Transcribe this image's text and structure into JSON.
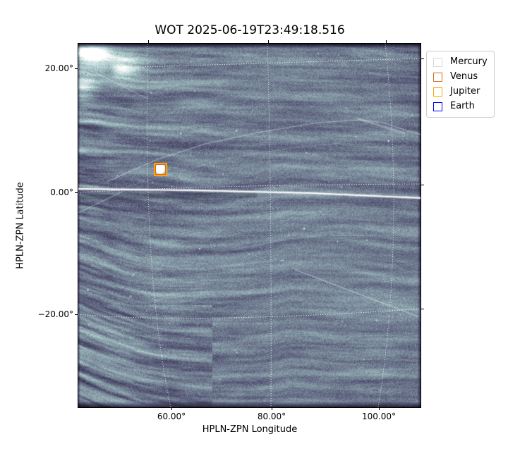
{
  "figure": {
    "title": "WOT 2025-06-19T23:49:18.516"
  },
  "axes": {
    "xlabel": "HPLN-ZPN Longitude",
    "ylabel": "HPLN-ZPN Latitude",
    "x_tick_labels": [
      "60.00°",
      "80.00°",
      "100.00°"
    ],
    "y_tick_labels": [
      "20.00°",
      "0.00°",
      "−20.00°"
    ]
  },
  "legend": {
    "items": [
      {
        "label": "Mercury",
        "color": "#d9d9d9"
      },
      {
        "label": "Venus",
        "color": "#d2691e"
      },
      {
        "label": "Jupiter",
        "color": "#ffa500"
      },
      {
        "label": "Earth",
        "color": "#0000ff"
      }
    ]
  },
  "chart_data": {
    "type": "heatmap",
    "subtype": "white-light heliospheric image on curvilinear WCS projection",
    "title": "WOT 2025-06-19T23:49:18.516",
    "xlabel": "HPLN-ZPN Longitude",
    "ylabel": "HPLN-ZPN Latitude",
    "x_ticks_deg": [
      60,
      80,
      100
    ],
    "y_ticks_deg": [
      20,
      0,
      -20
    ],
    "approx_xlim_deg": [
      42,
      108
    ],
    "approx_ylim_deg": [
      -35,
      24
    ],
    "grid": "white dotted curved graticule lines at each labeled tick",
    "colormap": "bone (dark navy-gray to pale cyan-white)",
    "legend_position": "outside upper-right",
    "features": [
      "saturated bright horizontal streak crossing full width just above 0° latitude",
      "bright flare-like blob in upper-left corner of the image",
      "thin bright arc rising from center-left and peaking near 95° longitude, +7° latitude",
      "diagonal bright streak descending through the lower-right quadrant",
      "strong slanted dark/light solar-wind striations in the left and lower-left regions",
      "fine speckle noise with scattered faint star points"
    ],
    "planet_markers_visible": [
      {
        "approx_lon_deg": 57.7,
        "approx_lat_deg": 3.5,
        "marker": "open square",
        "edge_colors": [
          "#d2691e",
          "#ffa500"
        ],
        "note": "orange/chocolate square marker(s) drawn over a saturated white planet"
      }
    ]
  }
}
